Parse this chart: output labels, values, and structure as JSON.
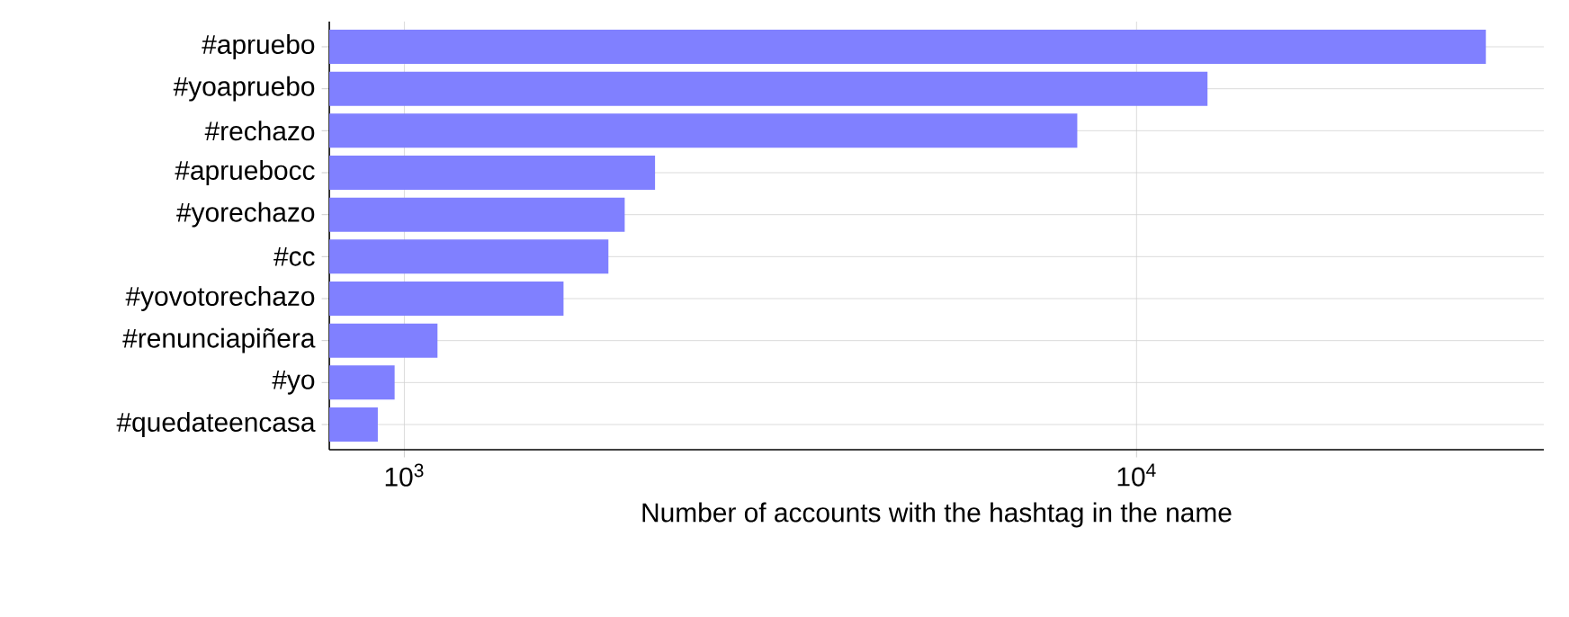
{
  "chart_data": {
    "type": "bar",
    "orientation": "horizontal",
    "log": "x",
    "xlabel": "Number of accounts with the hashtag in the name",
    "categories": [
      "#apruebo",
      "#yoapruebo",
      "#rechazo",
      "#apruebocc",
      "#yorechazo",
      "#cc",
      "#yovotorechazo",
      "#renunciapiñera",
      "#yo",
      "#quedateencasa"
    ],
    "values": [
      30000,
      12500,
      8300,
      2200,
      2000,
      1900,
      1650,
      1110,
      970,
      920
    ],
    "color": "#8080ff",
    "xlim": [
      790,
      36000
    ],
    "xticks": [
      {
        "value": 1000,
        "label": "10$^{3}$"
      },
      {
        "value": 10000,
        "label": "10$^{4}$"
      }
    ],
    "grid": true
  }
}
